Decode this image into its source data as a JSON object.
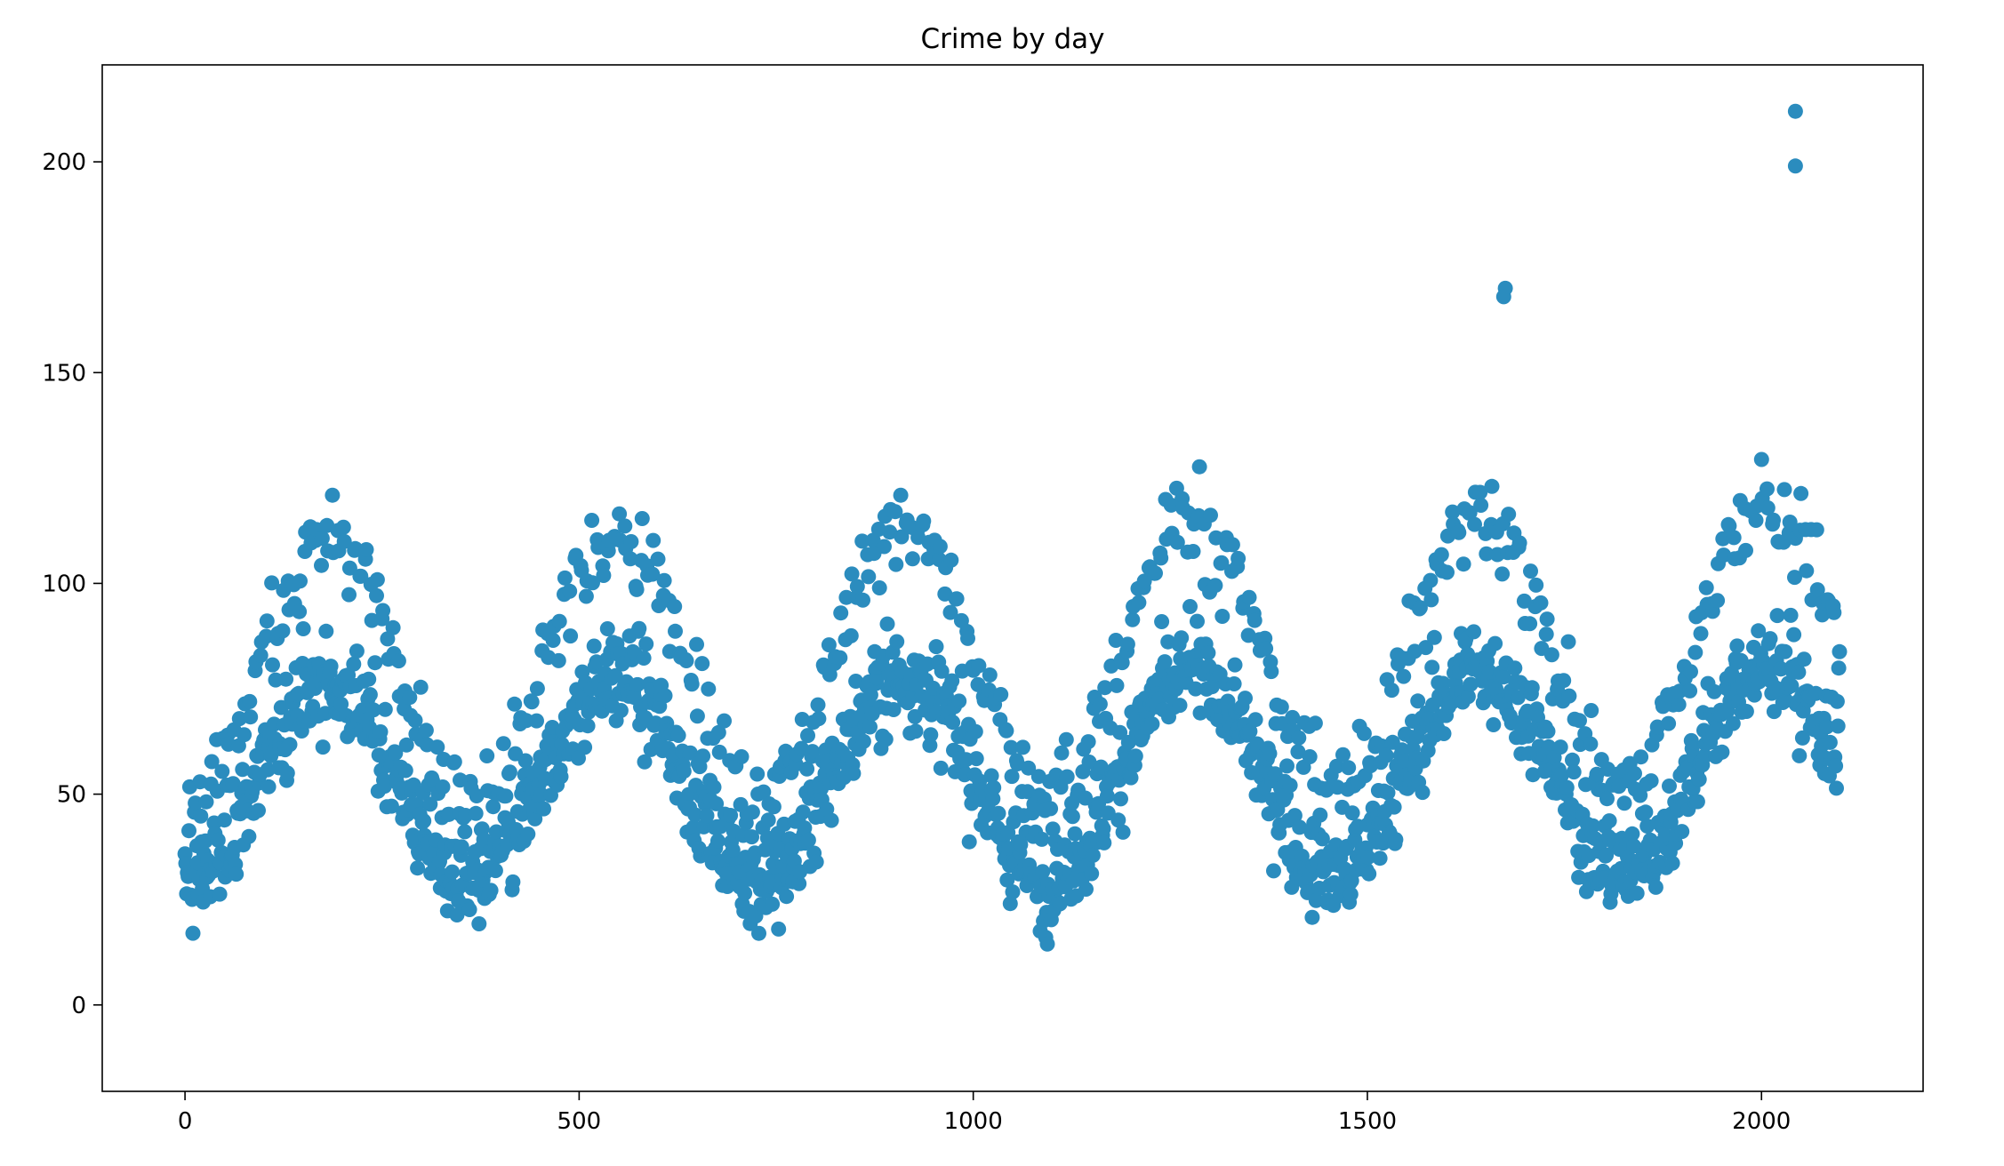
{
  "chart_data": {
    "type": "scatter",
    "title": "Crime by day",
    "xlabel": "",
    "ylabel": "",
    "xlim": [
      -105,
      2205
    ],
    "ylim": [
      -20.5,
      223
    ],
    "xticks": [
      0,
      500,
      1000,
      1500,
      2000
    ],
    "yticks": [
      0,
      50,
      100,
      150,
      200
    ],
    "grid": false,
    "point_color": "#2b8cbe",
    "n_points": 2100,
    "pattern": "two interleaved seasonal sine-like bands (upper band peaks ~100-140, lower band ~30-80, period ~365 days) with noise",
    "outliers": [
      {
        "x": 1675,
        "y": 170
      },
      {
        "x": 1673,
        "y": 168
      },
      {
        "x": 2043,
        "y": 212
      },
      {
        "x": 2043,
        "y": 199
      }
    ]
  }
}
